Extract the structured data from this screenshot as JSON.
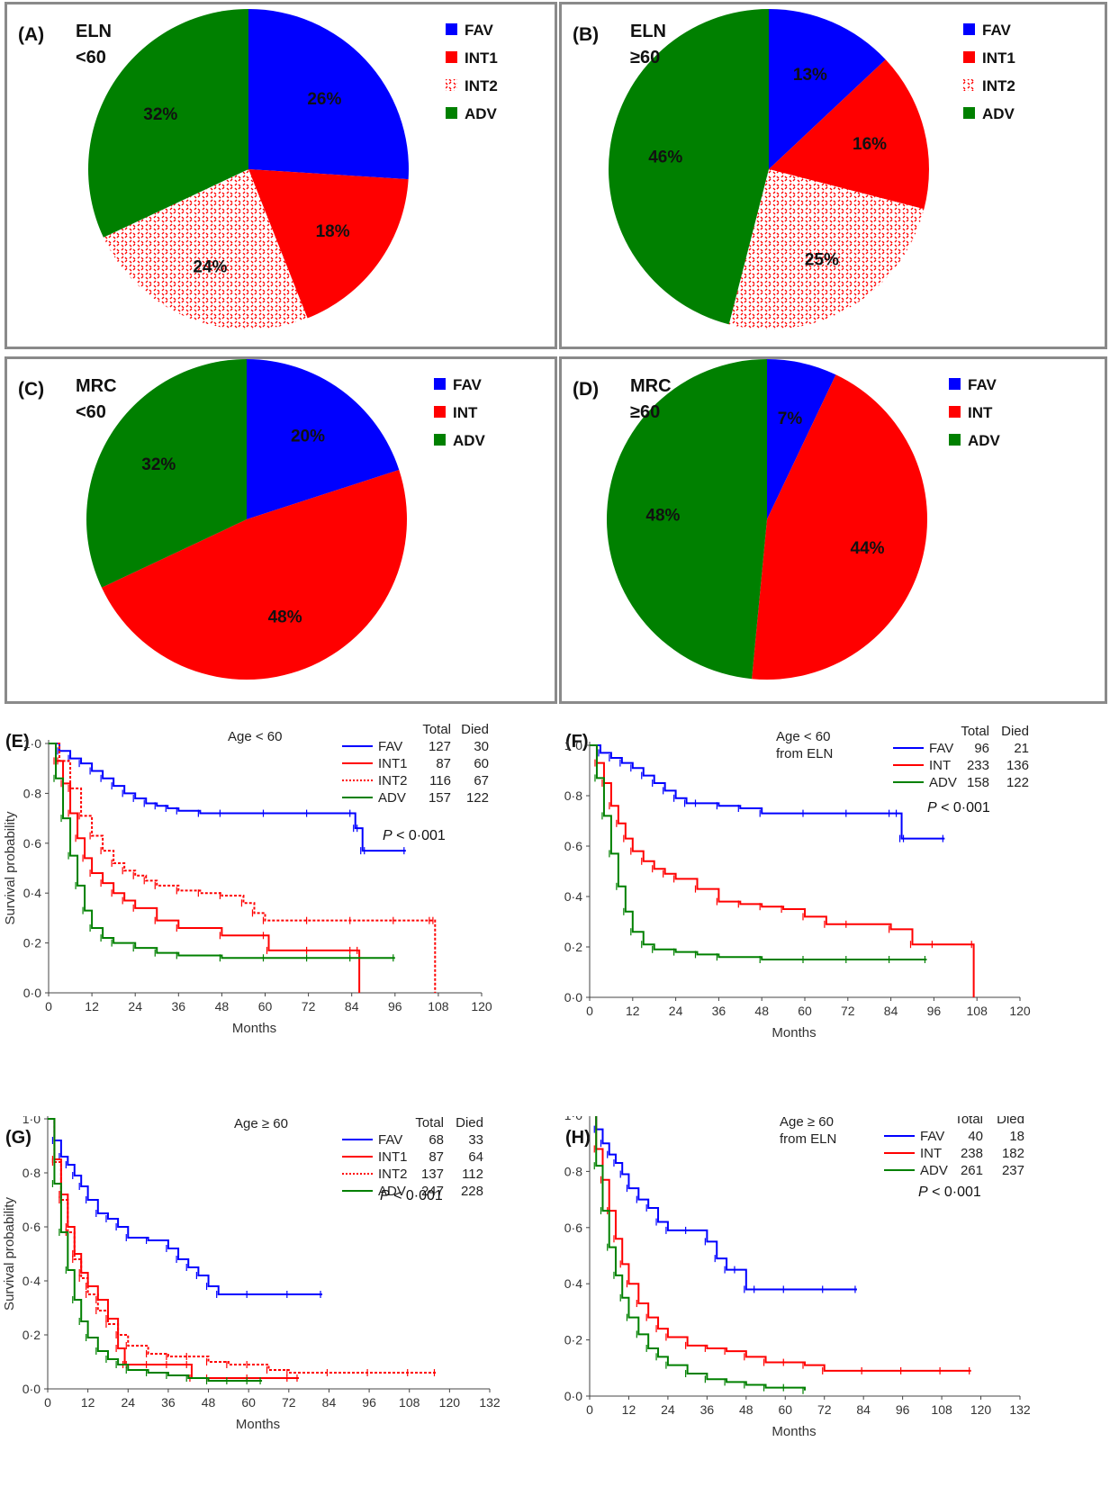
{
  "colors": {
    "FAV": "#0000ff",
    "INT": "#ff0000",
    "INT2": "#ff0000",
    "ADV": "#008000",
    "border": "#8a8a8a"
  },
  "chart_data": [
    {
      "id": "A",
      "type": "pie",
      "letter": "(A)",
      "title_lines": [
        "ELN",
        "<60"
      ],
      "slices": [
        {
          "name": "FAV",
          "value": 26,
          "label": "26%",
          "color": "#0000ff",
          "pattern": false
        },
        {
          "name": "INT1",
          "value": 18,
          "label": "18%",
          "color": "#ff0000",
          "pattern": false
        },
        {
          "name": "INT2",
          "value": 24,
          "label": "24%",
          "color": "#ff0000",
          "pattern": true
        },
        {
          "name": "ADV",
          "value": 32,
          "label": "32%",
          "color": "#008000",
          "pattern": false
        }
      ],
      "legend": [
        "FAV",
        "INT1",
        "INT2",
        "ADV"
      ],
      "legend_position": "top-right"
    },
    {
      "id": "B",
      "type": "pie",
      "letter": "(B)",
      "title_lines": [
        "ELN",
        "≥60"
      ],
      "slices": [
        {
          "name": "FAV",
          "value": 13,
          "label": "13%",
          "color": "#0000ff",
          "pattern": false
        },
        {
          "name": "INT1",
          "value": 16,
          "label": "16%",
          "color": "#ff0000",
          "pattern": false
        },
        {
          "name": "INT2",
          "value": 25,
          "label": "25%",
          "color": "#ff0000",
          "pattern": true
        },
        {
          "name": "ADV",
          "value": 46,
          "label": "46%",
          "color": "#008000",
          "pattern": false
        }
      ],
      "legend": [
        "FAV",
        "INT1",
        "INT2",
        "ADV"
      ],
      "legend_position": "top-right"
    },
    {
      "id": "C",
      "type": "pie",
      "letter": "(C)",
      "title_lines": [
        "MRC",
        "<60"
      ],
      "slices": [
        {
          "name": "FAV",
          "value": 20,
          "label": "20%",
          "color": "#0000ff",
          "pattern": false
        },
        {
          "name": "INT",
          "value": 48,
          "label": "48%",
          "color": "#ff0000",
          "pattern": false
        },
        {
          "name": "ADV",
          "value": 32,
          "label": "32%",
          "color": "#008000",
          "pattern": false
        }
      ],
      "legend": [
        "FAV",
        "INT",
        "ADV"
      ],
      "legend_position": "top-right"
    },
    {
      "id": "D",
      "type": "pie",
      "letter": "(D)",
      "title_lines": [
        "MRC",
        "≥60"
      ],
      "slices": [
        {
          "name": "FAV",
          "value": 7,
          "label": "7%",
          "color": "#0000ff",
          "pattern": false
        },
        {
          "name": "INT",
          "value": 44,
          "label": "44%",
          "color": "#ff0000",
          "pattern": false
        },
        {
          "name": "ADV",
          "value": 48,
          "label": "48%",
          "color": "#008000",
          "pattern": false
        }
      ],
      "legend": [
        "FAV",
        "INT",
        "ADV"
      ],
      "legend_position": "top-right"
    },
    {
      "id": "E",
      "type": "line",
      "letter": "(E)",
      "subtitle_lines": [
        "Age < 60"
      ],
      "xlabel": "Months",
      "ylabel": "Survival probability",
      "xlim": [
        0,
        120
      ],
      "ylim": [
        0,
        1
      ],
      "xticks": [
        0,
        12,
        24,
        36,
        48,
        60,
        72,
        84,
        96,
        108,
        120
      ],
      "yticks": [
        "0·0",
        "0·2",
        "0·4",
        "0·6",
        "0·8",
        "1·0"
      ],
      "table_header": [
        "Total",
        "Died"
      ],
      "pvalue": "P < 0·001",
      "series": [
        {
          "name": "FAV",
          "total": "127",
          "died": "30",
          "color": "#0000ff",
          "dashed": false,
          "x": [
            0,
            3,
            6,
            9,
            12,
            15,
            18,
            21,
            24,
            27,
            30,
            33,
            36,
            42,
            48,
            60,
            72,
            84,
            85,
            86,
            87,
            88,
            99
          ],
          "y": [
            1.0,
            0.97,
            0.94,
            0.92,
            0.89,
            0.86,
            0.83,
            0.8,
            0.78,
            0.76,
            0.75,
            0.74,
            0.73,
            0.72,
            0.72,
            0.72,
            0.72,
            0.72,
            0.66,
            0.66,
            0.57,
            0.57,
            0.57
          ]
        },
        {
          "name": "INT1",
          "total": "87",
          "died": "60",
          "color": "#ff0000",
          "dashed": false,
          "x": [
            0,
            2,
            4,
            6,
            8,
            10,
            12,
            15,
            18,
            21,
            24,
            30,
            36,
            48,
            60,
            61,
            72,
            84,
            86,
            86.1
          ],
          "y": [
            1.0,
            0.93,
            0.84,
            0.72,
            0.62,
            0.54,
            0.48,
            0.44,
            0.4,
            0.37,
            0.34,
            0.29,
            0.26,
            0.23,
            0.23,
            0.17,
            0.17,
            0.17,
            0.17,
            0.0
          ]
        },
        {
          "name": "INT2",
          "total": "116",
          "died": "67",
          "color": "#ff0000",
          "dashed": true,
          "x": [
            0,
            3,
            6,
            9,
            12,
            15,
            18,
            21,
            24,
            27,
            30,
            36,
            42,
            48,
            54,
            57,
            60,
            72,
            84,
            96,
            106,
            107,
            107.1
          ],
          "y": [
            1.0,
            0.93,
            0.82,
            0.71,
            0.63,
            0.57,
            0.52,
            0.49,
            0.47,
            0.45,
            0.43,
            0.41,
            0.4,
            0.39,
            0.36,
            0.32,
            0.29,
            0.29,
            0.29,
            0.29,
            0.29,
            0.29,
            0.0
          ]
        },
        {
          "name": "ADV",
          "total": "157",
          "died": "122",
          "color": "#008000",
          "dashed": false,
          "x": [
            0,
            2,
            4,
            6,
            8,
            10,
            12,
            15,
            18,
            24,
            30,
            36,
            48,
            60,
            72,
            84,
            96
          ],
          "y": [
            1.0,
            0.86,
            0.7,
            0.55,
            0.43,
            0.33,
            0.26,
            0.22,
            0.2,
            0.18,
            0.16,
            0.15,
            0.14,
            0.14,
            0.14,
            0.14,
            0.14
          ]
        }
      ]
    },
    {
      "id": "F",
      "type": "line",
      "letter": "(F)",
      "subtitle_lines": [
        "Age < 60",
        "from ELN"
      ],
      "xlabel": "Months",
      "ylabel": "Survival probability",
      "xlim": [
        0,
        120
      ],
      "ylim": [
        0,
        1
      ],
      "xticks": [
        0,
        12,
        24,
        36,
        48,
        60,
        72,
        84,
        96,
        108,
        120
      ],
      "yticks": [
        "0·0",
        "0·2",
        "0·4",
        "0·6",
        "0·8",
        "1·0"
      ],
      "table_header": [
        "Total",
        "Died"
      ],
      "pvalue": "P < 0·001",
      "series": [
        {
          "name": "FAV",
          "total": "96",
          "died": "21",
          "color": "#0000ff",
          "dashed": false,
          "x": [
            0,
            3,
            6,
            9,
            12,
            15,
            18,
            21,
            24,
            27,
            30,
            36,
            42,
            48,
            60,
            72,
            84,
            86,
            87,
            88,
            99
          ],
          "y": [
            1.0,
            0.97,
            0.95,
            0.93,
            0.91,
            0.88,
            0.85,
            0.82,
            0.79,
            0.77,
            0.77,
            0.76,
            0.75,
            0.73,
            0.73,
            0.73,
            0.73,
            0.73,
            0.63,
            0.63,
            0.63
          ]
        },
        {
          "name": "INT",
          "total": "233",
          "died": "136",
          "color": "#ff0000",
          "dashed": false,
          "x": [
            0,
            2,
            4,
            6,
            8,
            10,
            12,
            15,
            18,
            21,
            24,
            30,
            36,
            42,
            48,
            54,
            60,
            66,
            72,
            84,
            90,
            96,
            107,
            107.1
          ],
          "y": [
            1.0,
            0.93,
            0.85,
            0.76,
            0.69,
            0.63,
            0.58,
            0.54,
            0.51,
            0.49,
            0.47,
            0.43,
            0.38,
            0.37,
            0.36,
            0.35,
            0.32,
            0.29,
            0.29,
            0.27,
            0.21,
            0.21,
            0.21,
            0.0
          ]
        },
        {
          "name": "ADV",
          "total": "158",
          "died": "122",
          "color": "#008000",
          "dashed": false,
          "x": [
            0,
            2,
            4,
            6,
            8,
            10,
            12,
            15,
            18,
            24,
            30,
            36,
            48,
            60,
            72,
            84,
            94
          ],
          "y": [
            1.0,
            0.87,
            0.72,
            0.57,
            0.44,
            0.34,
            0.26,
            0.21,
            0.19,
            0.18,
            0.17,
            0.16,
            0.15,
            0.15,
            0.15,
            0.15,
            0.15
          ]
        }
      ]
    },
    {
      "id": "G",
      "type": "line",
      "letter": "(G)",
      "subtitle_lines": [
        "Age ≥ 60"
      ],
      "xlabel": "Months",
      "ylabel": "Survival probability",
      "xlim": [
        0,
        132
      ],
      "ylim": [
        0,
        1
      ],
      "xticks": [
        0,
        12,
        24,
        36,
        48,
        60,
        72,
        84,
        96,
        108,
        120,
        132
      ],
      "yticks": [
        "0·0",
        "0·2",
        "0·4",
        "0·6",
        "0·8",
        "1·0"
      ],
      "table_header": [
        "Total",
        "Died"
      ],
      "pvalue": "P < 0·001",
      "series": [
        {
          "name": "FAV",
          "total": "68",
          "died": "33",
          "color": "#0000ff",
          "dashed": false,
          "x": [
            0,
            2,
            4,
            6,
            8,
            10,
            12,
            15,
            18,
            21,
            24,
            30,
            36,
            39,
            42,
            45,
            48,
            51,
            60,
            72,
            82
          ],
          "y": [
            1.0,
            0.92,
            0.86,
            0.83,
            0.79,
            0.75,
            0.7,
            0.65,
            0.63,
            0.6,
            0.56,
            0.55,
            0.52,
            0.48,
            0.45,
            0.42,
            0.38,
            0.35,
            0.35,
            0.35,
            0.35
          ]
        },
        {
          "name": "INT1",
          "total": "87",
          "died": "64",
          "color": "#ff0000",
          "dashed": false,
          "x": [
            0,
            2,
            4,
            6,
            8,
            10,
            12,
            15,
            18,
            21,
            23,
            24,
            30,
            36,
            42,
            43,
            48,
            60,
            72,
            75
          ],
          "y": [
            1.0,
            0.85,
            0.72,
            0.6,
            0.5,
            0.43,
            0.38,
            0.33,
            0.26,
            0.15,
            0.09,
            0.09,
            0.09,
            0.09,
            0.09,
            0.04,
            0.04,
            0.04,
            0.04,
            0.04
          ]
        },
        {
          "name": "INT2",
          "total": "137",
          "died": "112",
          "color": "#ff0000",
          "dashed": true,
          "x": [
            0,
            2,
            4,
            6,
            8,
            10,
            12,
            15,
            18,
            21,
            24,
            30,
            36,
            42,
            48,
            54,
            60,
            66,
            72,
            84,
            96,
            108,
            116
          ],
          "y": [
            1.0,
            0.84,
            0.7,
            0.58,
            0.48,
            0.41,
            0.35,
            0.29,
            0.24,
            0.2,
            0.16,
            0.13,
            0.12,
            0.12,
            0.1,
            0.09,
            0.09,
            0.07,
            0.06,
            0.06,
            0.06,
            0.06,
            0.06
          ]
        },
        {
          "name": "ADV",
          "total": "247",
          "died": "228",
          "color": "#008000",
          "dashed": false,
          "x": [
            0,
            2,
            4,
            6,
            8,
            10,
            12,
            15,
            18,
            21,
            24,
            30,
            36,
            42,
            48,
            54,
            60,
            64
          ],
          "y": [
            1.0,
            0.76,
            0.58,
            0.44,
            0.33,
            0.25,
            0.19,
            0.14,
            0.11,
            0.09,
            0.07,
            0.06,
            0.05,
            0.04,
            0.03,
            0.03,
            0.03,
            0.03
          ]
        }
      ]
    },
    {
      "id": "H",
      "type": "line",
      "letter": "(H)",
      "subtitle_lines": [
        "Age ≥ 60",
        "from ELN"
      ],
      "xlabel": "Months",
      "ylabel": "Survival probability",
      "xlim": [
        0,
        132
      ],
      "ylim": [
        0,
        1
      ],
      "xticks": [
        0,
        12,
        24,
        36,
        48,
        60,
        72,
        84,
        96,
        108,
        120,
        132
      ],
      "yticks": [
        "0·0",
        "0·2",
        "0·4",
        "0·6",
        "0·8",
        "1·0"
      ],
      "table_header": [
        "Total",
        "Died"
      ],
      "pvalue": "P < 0·001",
      "series": [
        {
          "name": "FAV",
          "total": "40",
          "died": "18",
          "color": "#0000ff",
          "dashed": false,
          "x": [
            0,
            2,
            4,
            6,
            8,
            10,
            12,
            15,
            18,
            21,
            24,
            30,
            36,
            39,
            42,
            45,
            48,
            51,
            60,
            72,
            82
          ],
          "y": [
            1.0,
            0.95,
            0.9,
            0.86,
            0.83,
            0.79,
            0.74,
            0.7,
            0.67,
            0.62,
            0.59,
            0.59,
            0.55,
            0.49,
            0.45,
            0.45,
            0.38,
            0.38,
            0.38,
            0.38,
            0.38
          ]
        },
        {
          "name": "INT",
          "total": "238",
          "died": "182",
          "color": "#ff0000",
          "dashed": false,
          "x": [
            0,
            2,
            4,
            6,
            8,
            10,
            12,
            15,
            18,
            21,
            24,
            30,
            36,
            42,
            48,
            54,
            60,
            66,
            72,
            84,
            96,
            108,
            117
          ],
          "y": [
            1.0,
            0.88,
            0.77,
            0.66,
            0.56,
            0.47,
            0.4,
            0.33,
            0.28,
            0.24,
            0.21,
            0.18,
            0.17,
            0.16,
            0.14,
            0.12,
            0.12,
            0.11,
            0.09,
            0.09,
            0.09,
            0.09,
            0.09
          ]
        },
        {
          "name": "ADV",
          "total": "261",
          "died": "237",
          "color": "#008000",
          "dashed": false,
          "x": [
            0,
            2,
            4,
            6,
            8,
            10,
            12,
            15,
            18,
            21,
            24,
            30,
            36,
            42,
            48,
            54,
            60,
            66
          ],
          "y": [
            1.0,
            0.82,
            0.66,
            0.53,
            0.43,
            0.35,
            0.28,
            0.22,
            0.17,
            0.14,
            0.11,
            0.08,
            0.06,
            0.05,
            0.04,
            0.03,
            0.03,
            0.02
          ]
        }
      ]
    }
  ]
}
